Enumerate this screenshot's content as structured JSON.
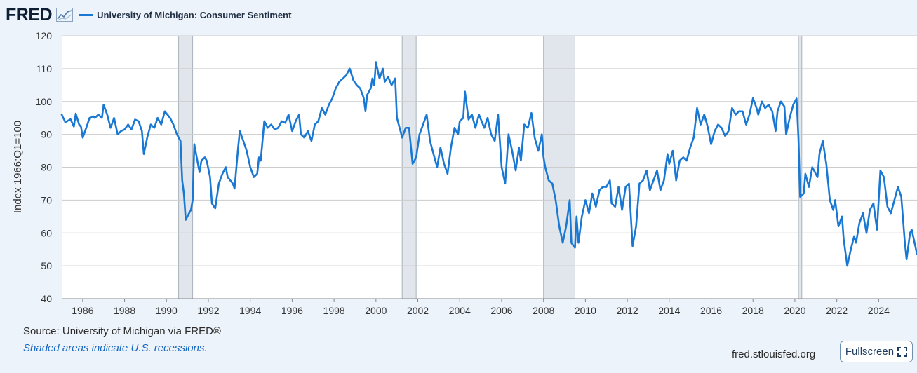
{
  "header": {
    "logo_text": "FRED",
    "series_label": "University of Michigan: Consumer Sentiment"
  },
  "footer": {
    "source": "Source: University of Michigan via FRED®",
    "note": "Shaded areas indicate U.S. recessions.",
    "url": "fred.stlouisfed.org",
    "fullscreen_label": "Fullscreen"
  },
  "colors": {
    "line": "#1978d4",
    "recession": "#e0e6ec",
    "grid": "#cccccc",
    "background": "#edf3fa"
  },
  "chart_data": {
    "type": "line",
    "title": "University of Michigan: Consumer Sentiment",
    "xlabel": "",
    "ylabel": "Index 1966:Q1=100",
    "xlim": [
      1985.0,
      2025.83
    ],
    "ylim": [
      40,
      120
    ],
    "yticks": [
      40,
      50,
      60,
      70,
      80,
      90,
      100,
      110,
      120
    ],
    "xticks": [
      1986,
      1988,
      1990,
      1992,
      1994,
      1996,
      1998,
      2000,
      2002,
      2004,
      2006,
      2008,
      2010,
      2012,
      2014,
      2016,
      2018,
      2020,
      2022,
      2024
    ],
    "grid": true,
    "recessions": [
      [
        1990.58,
        1991.25
      ],
      [
        2001.25,
        2001.92
      ],
      [
        2008.0,
        2009.5
      ],
      [
        2020.17,
        2020.33
      ]
    ],
    "series": [
      {
        "name": "University of Michigan: Consumer Sentiment",
        "points": [
          [
            1985.0,
            96.0
          ],
          [
            1985.17,
            93.7
          ],
          [
            1985.42,
            94.6
          ],
          [
            1985.58,
            92.4
          ],
          [
            1985.67,
            96.3
          ],
          [
            1985.83,
            93.0
          ],
          [
            1985.92,
            92.3
          ],
          [
            1986.0,
            89.0
          ],
          [
            1986.17,
            92.0
          ],
          [
            1986.33,
            95.0
          ],
          [
            1986.5,
            95.5
          ],
          [
            1986.58,
            95.0
          ],
          [
            1986.75,
            96.0
          ],
          [
            1986.92,
            95.0
          ],
          [
            1987.0,
            99.0
          ],
          [
            1987.17,
            96.0
          ],
          [
            1987.33,
            92.0
          ],
          [
            1987.5,
            95.0
          ],
          [
            1987.67,
            90.0
          ],
          [
            1987.83,
            91.0
          ],
          [
            1988.0,
            91.5
          ],
          [
            1988.17,
            93.0
          ],
          [
            1988.33,
            91.5
          ],
          [
            1988.5,
            94.5
          ],
          [
            1988.67,
            94.0
          ],
          [
            1988.83,
            91.0
          ],
          [
            1988.92,
            84.0
          ],
          [
            1989.08,
            89.0
          ],
          [
            1989.25,
            93.0
          ],
          [
            1989.42,
            92.0
          ],
          [
            1989.58,
            95.0
          ],
          [
            1989.75,
            93.0
          ],
          [
            1989.92,
            97.0
          ],
          [
            1990.17,
            95.0
          ],
          [
            1990.33,
            93.0
          ],
          [
            1990.5,
            90.0
          ],
          [
            1990.67,
            88.0
          ],
          [
            1990.75,
            76.0
          ],
          [
            1990.83,
            72.0
          ],
          [
            1990.92,
            64.0
          ],
          [
            1991.08,
            66.0
          ],
          [
            1991.17,
            67.0
          ],
          [
            1991.25,
            70.0
          ],
          [
            1991.33,
            87.0
          ],
          [
            1991.5,
            81.0
          ],
          [
            1991.58,
            78.5
          ],
          [
            1991.67,
            82.0
          ],
          [
            1991.83,
            83.0
          ],
          [
            1991.92,
            82.0
          ],
          [
            1992.08,
            77.0
          ],
          [
            1992.17,
            69.0
          ],
          [
            1992.33,
            67.5
          ],
          [
            1992.5,
            75.0
          ],
          [
            1992.67,
            78.0
          ],
          [
            1992.83,
            80.0
          ],
          [
            1992.92,
            77.0
          ],
          [
            1993.17,
            75.0
          ],
          [
            1993.25,
            73.5
          ],
          [
            1993.42,
            86.0
          ],
          [
            1993.5,
            91.0
          ],
          [
            1993.67,
            88.0
          ],
          [
            1993.83,
            85.0
          ],
          [
            1994.0,
            80.0
          ],
          [
            1994.17,
            77.0
          ],
          [
            1994.33,
            78.0
          ],
          [
            1994.42,
            83.0
          ],
          [
            1994.5,
            82.0
          ],
          [
            1994.67,
            94.0
          ],
          [
            1994.83,
            92.0
          ],
          [
            1995.0,
            93.0
          ],
          [
            1995.17,
            91.5
          ],
          [
            1995.33,
            92.0
          ],
          [
            1995.5,
            94.0
          ],
          [
            1995.67,
            93.5
          ],
          [
            1995.83,
            96.0
          ],
          [
            1996.0,
            91.0
          ],
          [
            1996.17,
            94.0
          ],
          [
            1996.33,
            96.0
          ],
          [
            1996.42,
            90.0
          ],
          [
            1996.58,
            89.0
          ],
          [
            1996.75,
            91.0
          ],
          [
            1996.92,
            88.0
          ],
          [
            1997.08,
            93.0
          ],
          [
            1997.25,
            94.0
          ],
          [
            1997.42,
            98.0
          ],
          [
            1997.58,
            96.0
          ],
          [
            1997.75,
            99.0
          ],
          [
            1997.92,
            101.0
          ],
          [
            1998.08,
            104.0
          ],
          [
            1998.25,
            106.0
          ],
          [
            1998.42,
            107.0
          ],
          [
            1998.58,
            108.0
          ],
          [
            1998.75,
            110.0
          ],
          [
            1998.92,
            106.5
          ],
          [
            1999.08,
            105.0
          ],
          [
            1999.25,
            104.0
          ],
          [
            1999.42,
            101.0
          ],
          [
            1999.5,
            97.0
          ],
          [
            1999.58,
            102.0
          ],
          [
            1999.75,
            104.0
          ],
          [
            1999.83,
            107.0
          ],
          [
            1999.92,
            105.0
          ],
          [
            2000.0,
            112.0
          ],
          [
            2000.17,
            107.0
          ],
          [
            2000.33,
            110.0
          ],
          [
            2000.42,
            106.0
          ],
          [
            2000.58,
            107.5
          ],
          [
            2000.75,
            105.0
          ],
          [
            2000.92,
            107.0
          ],
          [
            2001.0,
            95.0
          ],
          [
            2001.17,
            91.0
          ],
          [
            2001.25,
            89.0
          ],
          [
            2001.42,
            92.0
          ],
          [
            2001.58,
            92.0
          ],
          [
            2001.75,
            81.0
          ],
          [
            2001.92,
            83.0
          ],
          [
            2002.08,
            90.0
          ],
          [
            2002.25,
            93.0
          ],
          [
            2002.42,
            96.0
          ],
          [
            2002.58,
            88.0
          ],
          [
            2002.75,
            84.0
          ],
          [
            2002.92,
            80.0
          ],
          [
            2003.08,
            86.0
          ],
          [
            2003.25,
            81.0
          ],
          [
            2003.42,
            78.0
          ],
          [
            2003.58,
            86.0
          ],
          [
            2003.75,
            92.0
          ],
          [
            2003.92,
            90.0
          ],
          [
            2004.0,
            94.0
          ],
          [
            2004.17,
            95.0
          ],
          [
            2004.25,
            103.0
          ],
          [
            2004.42,
            94.5
          ],
          [
            2004.58,
            96.0
          ],
          [
            2004.75,
            92.0
          ],
          [
            2004.92,
            96.0
          ],
          [
            2005.17,
            92.0
          ],
          [
            2005.33,
            95.0
          ],
          [
            2005.5,
            90.0
          ],
          [
            2005.67,
            88.0
          ],
          [
            2005.83,
            96.0
          ],
          [
            2006.0,
            80.0
          ],
          [
            2006.17,
            75.0
          ],
          [
            2006.33,
            90.0
          ],
          [
            2006.5,
            85.0
          ],
          [
            2006.67,
            79.0
          ],
          [
            2006.83,
            86.0
          ],
          [
            2006.92,
            82.0
          ],
          [
            2007.08,
            93.0
          ],
          [
            2007.25,
            92.0
          ],
          [
            2007.42,
            96.5
          ],
          [
            2007.58,
            89.0
          ],
          [
            2007.75,
            85.0
          ],
          [
            2007.92,
            90.0
          ],
          [
            2008.0,
            83.0
          ],
          [
            2008.08,
            80.0
          ],
          [
            2008.25,
            76.0
          ],
          [
            2008.42,
            75.0
          ],
          [
            2008.58,
            70.0
          ],
          [
            2008.75,
            62.0
          ],
          [
            2008.92,
            57.0
          ],
          [
            2009.08,
            62.0
          ],
          [
            2009.25,
            70.0
          ],
          [
            2009.33,
            57.0
          ],
          [
            2009.5,
            55.5
          ],
          [
            2009.58,
            65.0
          ],
          [
            2009.67,
            57.0
          ],
          [
            2009.83,
            65.0
          ],
          [
            2010.0,
            70.0
          ],
          [
            2010.17,
            66.0
          ],
          [
            2010.33,
            72.0
          ],
          [
            2010.5,
            68.0
          ],
          [
            2010.67,
            73.0
          ],
          [
            2010.83,
            74.0
          ],
          [
            2011.0,
            74.0
          ],
          [
            2011.17,
            76.0
          ],
          [
            2011.25,
            69.0
          ],
          [
            2011.42,
            68.0
          ],
          [
            2011.58,
            74.0
          ],
          [
            2011.75,
            67.0
          ],
          [
            2011.92,
            74.0
          ],
          [
            2012.08,
            75.0
          ],
          [
            2012.25,
            56.0
          ],
          [
            2012.42,
            62.0
          ],
          [
            2012.58,
            75.0
          ],
          [
            2012.75,
            76.0
          ],
          [
            2012.92,
            79.0
          ],
          [
            2013.08,
            73.0
          ],
          [
            2013.25,
            76.0
          ],
          [
            2013.42,
            79.0
          ],
          [
            2013.58,
            73.0
          ],
          [
            2013.75,
            76.0
          ],
          [
            2013.92,
            84.0
          ],
          [
            2014.0,
            81.0
          ],
          [
            2014.17,
            85.0
          ],
          [
            2014.33,
            76.0
          ],
          [
            2014.5,
            82.0
          ],
          [
            2014.67,
            83.0
          ],
          [
            2014.83,
            82.0
          ],
          [
            2015.0,
            86.0
          ],
          [
            2015.17,
            89.0
          ],
          [
            2015.33,
            98.0
          ],
          [
            2015.5,
            93.0
          ],
          [
            2015.67,
            96.0
          ],
          [
            2015.83,
            92.5
          ],
          [
            2016.0,
            87.0
          ],
          [
            2016.17,
            91.0
          ],
          [
            2016.33,
            93.0
          ],
          [
            2016.5,
            92.0
          ],
          [
            2016.67,
            89.5
          ],
          [
            2016.83,
            91.0
          ],
          [
            2017.0,
            98.0
          ],
          [
            2017.17,
            96.0
          ],
          [
            2017.33,
            97.0
          ],
          [
            2017.5,
            97.0
          ],
          [
            2017.67,
            93.0
          ],
          [
            2017.83,
            96.0
          ],
          [
            2018.0,
            101.0
          ],
          [
            2018.17,
            98.0
          ],
          [
            2018.25,
            96.0
          ],
          [
            2018.42,
            100.0
          ],
          [
            2018.58,
            98.0
          ],
          [
            2018.75,
            99.0
          ],
          [
            2018.92,
            97.0
          ],
          [
            2019.08,
            91.0
          ],
          [
            2019.17,
            97.0
          ],
          [
            2019.33,
            100.0
          ],
          [
            2019.5,
            98.5
          ],
          [
            2019.58,
            90.0
          ],
          [
            2019.75,
            95.0
          ],
          [
            2019.92,
            99.0
          ],
          [
            2020.08,
            100.9
          ],
          [
            2020.17,
            89.0
          ],
          [
            2020.25,
            71.0
          ],
          [
            2020.42,
            72.0
          ],
          [
            2020.5,
            78.0
          ],
          [
            2020.67,
            74.0
          ],
          [
            2020.83,
            80.0
          ],
          [
            2021.08,
            77.0
          ],
          [
            2021.17,
            84.0
          ],
          [
            2021.33,
            88.0
          ],
          [
            2021.5,
            81.0
          ],
          [
            2021.67,
            70.0
          ],
          [
            2021.83,
            67.0
          ],
          [
            2021.92,
            70.0
          ],
          [
            2022.08,
            62.0
          ],
          [
            2022.25,
            65.0
          ],
          [
            2022.33,
            58.0
          ],
          [
            2022.5,
            50.0
          ],
          [
            2022.67,
            55.0
          ],
          [
            2022.83,
            59.0
          ],
          [
            2022.92,
            57.0
          ],
          [
            2023.08,
            63.0
          ],
          [
            2023.25,
            66.0
          ],
          [
            2023.42,
            60.0
          ],
          [
            2023.58,
            67.0
          ],
          [
            2023.75,
            69.0
          ],
          [
            2023.92,
            61.0
          ],
          [
            2024.08,
            79.0
          ],
          [
            2024.25,
            77.0
          ],
          [
            2024.42,
            68.0
          ],
          [
            2024.58,
            66.0
          ],
          [
            2024.75,
            70.0
          ],
          [
            2024.92,
            74.0
          ],
          [
            2025.08,
            71.0
          ],
          [
            2025.25,
            57.0
          ],
          [
            2025.33,
            52.0
          ],
          [
            2025.5,
            60.0
          ],
          [
            2025.58,
            61.0
          ],
          [
            2025.83,
            53.6
          ]
        ]
      }
    ]
  }
}
